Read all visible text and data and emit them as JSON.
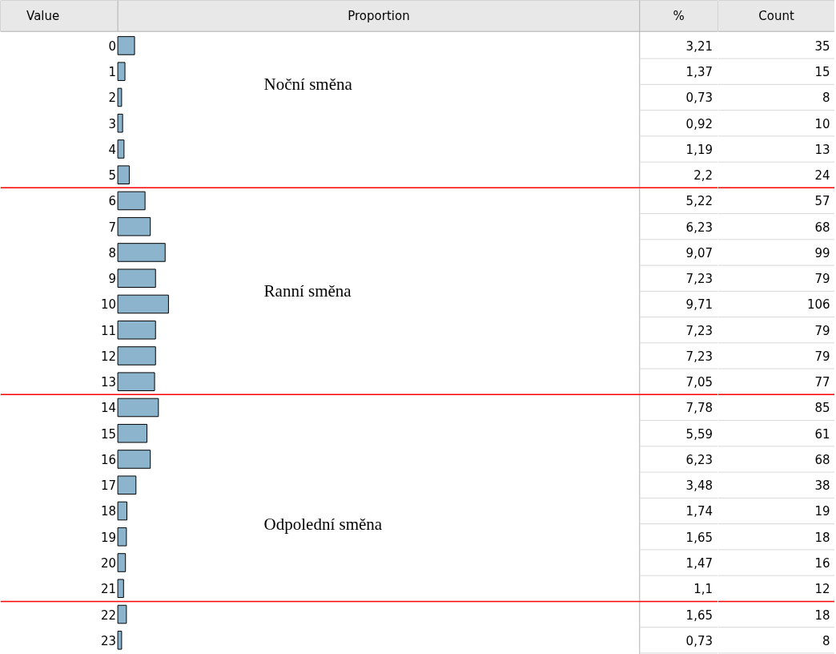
{
  "chart_data": [
    {
      "type": "bar",
      "orientation": "horizontal",
      "ylabel": "Value",
      "xlabel": "Proportion",
      "categories": [
        "0",
        "1",
        "2",
        "3",
        "4",
        "5",
        "6",
        "7",
        "8",
        "9",
        "10",
        "11",
        "12",
        "13",
        "14",
        "15",
        "16",
        "17",
        "18",
        "19",
        "20",
        "21",
        "22",
        "23"
      ],
      "xlim": [
        0,
        100
      ],
      "tick_labels": "y",
      "series": [
        {
          "name": "%",
          "color": "#8cb4cc",
          "values": [
            3.21,
            1.37,
            0.73,
            0.92,
            1.19,
            2.2,
            5.22,
            6.23,
            9.07,
            7.23,
            9.71,
            7.23,
            7.23,
            7.05,
            7.78,
            5.59,
            6.23,
            3.48,
            1.74,
            1.65,
            1.47,
            1.1,
            1.65,
            0.73
          ],
          "value_labels": [
            "3,21",
            "1,37",
            "0,73",
            "0,92",
            "1,19",
            "2,2",
            "5,22",
            "6,23",
            "9,07",
            "7,23",
            "9,71",
            "7,23",
            "7,23",
            "7,05",
            "7,78",
            "5,59",
            "6,23",
            "3,48",
            "1,74",
            "1,65",
            "1,47",
            "1,1",
            "1,65",
            "0,73"
          ]
        }
      ],
      "annotations": [
        "Noční směna",
        "Ranní směna",
        "Odpolední směna"
      ]
    },
    {
      "type": "other",
      "data_labels": true,
      "series": [
        {
          "name": "Count",
          "values": [
            35,
            15,
            8,
            10,
            13,
            24,
            57,
            68,
            99,
            79,
            106,
            79,
            79,
            77,
            85,
            61,
            68,
            38,
            19,
            18,
            16,
            12,
            18,
            8
          ]
        }
      ]
    }
  ]
}
